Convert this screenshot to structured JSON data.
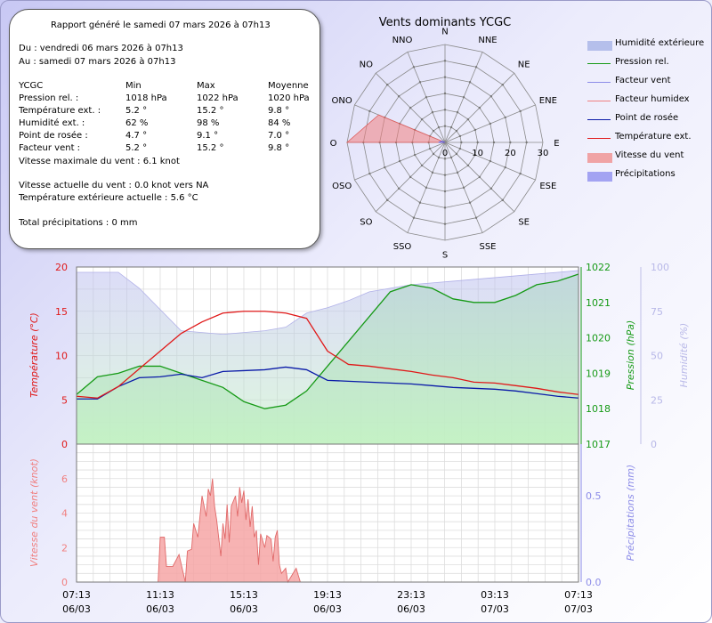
{
  "report": {
    "title": "Rapport généré le samedi 07 mars 2026 à 07h13",
    "from": "Du : vendredi 06 mars 2026 à 07h13",
    "to": "Au : samedi 07 mars 2026 à 07h13",
    "header": [
      "YCGC",
      "Min",
      "Max",
      "Moyenne"
    ],
    "rows": [
      [
        "Pression rel. :",
        "1018 hPa",
        "1022 hPa",
        "1020 hPa"
      ],
      [
        "Température ext. :",
        "5.2 °",
        "15.2 °",
        "9.8 °"
      ],
      [
        "Humidité ext. :",
        "62 %",
        "98 %",
        "84 %"
      ],
      [
        "Point de rosée :",
        "4.7 °",
        "9.1 °",
        "7.0 °"
      ],
      [
        "Facteur vent :",
        "5.2 °",
        "15.2 °",
        "9.8 °"
      ]
    ],
    "max_wind": "Vitesse maximale du vent : 6.1 knot",
    "current_wind": "Vitesse actuelle du vent : 0.0 knot vers  NA",
    "current_temp": "Température extérieure actuelle :  5.6 °C",
    "precip_total": "Total précipitations :  0 mm"
  },
  "legend": [
    {
      "label": "Humidité extérieure",
      "color": "#a8b4e8",
      "kind": "area"
    },
    {
      "label": "Pression rel.",
      "color": "#169a16",
      "kind": "line"
    },
    {
      "label": "Facteur vent",
      "color": "#8c8ce8",
      "kind": "line"
    },
    {
      "label": "Facteur humidex",
      "color": "#f08080",
      "kind": "line"
    },
    {
      "label": "Point de rosée",
      "color": "#0a1aa8",
      "kind": "line"
    },
    {
      "label": "Température ext.",
      "color": "#e01818",
      "kind": "line"
    },
    {
      "label": "Vitesse du vent",
      "color": "#f09090",
      "kind": "area"
    },
    {
      "label": "Précipitations",
      "color": "#9090f0",
      "kind": "area"
    }
  ],
  "chart_data": [
    {
      "type": "radar",
      "title": "Vents dominants YCGC",
      "directions": [
        "N",
        "NNE",
        "NE",
        "ENE",
        "E",
        "ESE",
        "SE",
        "SSE",
        "S",
        "SSO",
        "SO",
        "OSO",
        "O",
        "ONO",
        "NO",
        "NNO"
      ],
      "radial_ticks": [
        0,
        10,
        20,
        30
      ],
      "rmax": 30,
      "series": [
        {
          "name": "Vitesse du vent",
          "color": "#f08080",
          "values": [
            0,
            0,
            0,
            0,
            0,
            0,
            0,
            0,
            0,
            0,
            0,
            0,
            30,
            22,
            0,
            0
          ]
        },
        {
          "name": "Précipitations",
          "color": "#a0a0ff",
          "values": [
            0,
            0,
            0,
            0,
            0,
            0,
            0,
            0,
            0,
            0,
            0,
            0,
            2,
            1,
            0,
            0
          ]
        }
      ]
    },
    {
      "type": "line",
      "x": [
        0,
        1,
        2,
        3,
        4,
        5,
        6,
        7,
        8,
        9,
        10,
        11,
        12,
        13,
        14,
        15,
        16,
        17,
        18,
        19,
        20,
        21,
        22,
        23,
        24
      ],
      "x_tick_labels": [
        [
          "07:13",
          "06/03"
        ],
        [
          "11:13",
          "06/03"
        ],
        [
          "15:13",
          "06/03"
        ],
        [
          "19:13",
          "06/03"
        ],
        [
          "23:13",
          "06/03"
        ],
        [
          "03:13",
          "07/03"
        ],
        [
          "07:13",
          "07/03"
        ]
      ],
      "x_tick_hours": [
        0,
        4,
        8,
        12,
        16,
        20,
        24
      ],
      "y_left": {
        "label": "Température (°C)",
        "range": [
          0,
          20
        ],
        "ticks": [
          0,
          5,
          10,
          15,
          20
        ],
        "color": "#e01818"
      },
      "y_right1": {
        "label": "Pression (hPa)",
        "range": [
          1017,
          1022
        ],
        "ticks": [
          1017,
          1018,
          1019,
          1020,
          1021,
          1022
        ],
        "color": "#169a16"
      },
      "y_right2": {
        "label": "Humidité (%)",
        "range": [
          0,
          100
        ],
        "ticks": [
          0,
          25,
          50,
          75,
          100
        ],
        "color": "#b8b8e8"
      },
      "series": [
        {
          "name": "Humidité extérieure",
          "axis": "right2",
          "color": "#a8b4e8",
          "values": [
            97,
            97,
            97,
            88,
            76,
            64,
            63,
            62,
            63,
            64,
            66,
            74,
            77,
            81,
            86,
            88,
            90,
            91,
            92,
            93,
            94,
            95,
            96,
            97,
            98
          ]
        },
        {
          "name": "Pression rel.",
          "axis": "right1",
          "color": "#169a16",
          "values": [
            1018.4,
            1018.9,
            1019.0,
            1019.2,
            1019.2,
            1019.0,
            1018.8,
            1018.6,
            1018.2,
            1018.0,
            1018.1,
            1018.5,
            1019.2,
            1019.9,
            1020.6,
            1021.3,
            1021.5,
            1021.4,
            1021.1,
            1021.0,
            1021.0,
            1021.2,
            1021.5,
            1021.6,
            1021.8
          ]
        },
        {
          "name": "Température ext.",
          "axis": "left",
          "color": "#e01818",
          "values": [
            5.4,
            5.2,
            6.5,
            8.5,
            10.5,
            12.5,
            13.8,
            14.8,
            15.0,
            15.0,
            14.8,
            14.2,
            10.5,
            9.0,
            8.8,
            8.5,
            8.2,
            7.8,
            7.5,
            7.0,
            6.9,
            6.6,
            6.3,
            5.9,
            5.6
          ]
        },
        {
          "name": "Point de rosée",
          "axis": "left",
          "color": "#0a1aa8",
          "values": [
            5.1,
            5.1,
            6.5,
            7.5,
            7.6,
            7.9,
            7.5,
            8.2,
            8.3,
            8.4,
            8.7,
            8.4,
            7.2,
            7.1,
            7.0,
            6.9,
            6.8,
            6.6,
            6.4,
            6.3,
            6.2,
            6.0,
            5.7,
            5.4,
            5.2
          ]
        }
      ]
    },
    {
      "type": "area",
      "x": [
        0,
        1,
        2,
        3,
        4,
        5,
        6,
        7,
        8,
        9,
        10,
        11,
        12,
        13,
        14,
        15,
        16,
        17,
        18,
        19,
        20,
        21,
        22,
        23,
        24
      ],
      "x_tick_labels": [
        [
          "07:13",
          "06/03"
        ],
        [
          "11:13",
          "06/03"
        ],
        [
          "15:13",
          "06/03"
        ],
        [
          "19:13",
          "06/03"
        ],
        [
          "23:13",
          "06/03"
        ],
        [
          "03:13",
          "07/03"
        ],
        [
          "07:13",
          "07/03"
        ]
      ],
      "x_tick_hours": [
        0,
        4,
        8,
        12,
        16,
        20,
        24
      ],
      "y_left": {
        "label": "Vitesse du vent (knot)",
        "range": [
          0,
          8
        ],
        "ticks": [
          0,
          2,
          4,
          6
        ],
        "color": "#f08080"
      },
      "y_right": {
        "label": "Précipitations (mm)",
        "range": [
          0,
          0.8
        ],
        "ticks": [
          0.0,
          0.5
        ],
        "color": "#8c8ce8"
      },
      "series": [
        {
          "name": "Vitesse du vent",
          "axis": "left",
          "color": "#f08080",
          "points": [
            [
              3.9,
              0
            ],
            [
              4.0,
              2.6
            ],
            [
              4.2,
              2.6
            ],
            [
              4.3,
              0.9
            ],
            [
              4.6,
              0.9
            ],
            [
              4.9,
              1.6
            ],
            [
              5.2,
              0
            ],
            [
              5.3,
              1.8
            ],
            [
              5.5,
              1.9
            ],
            [
              5.6,
              3.4
            ],
            [
              5.8,
              2.6
            ],
            [
              5.9,
              3.8
            ],
            [
              6.0,
              5.0
            ],
            [
              6.2,
              3.8
            ],
            [
              6.3,
              5.4
            ],
            [
              6.4,
              5.0
            ],
            [
              6.5,
              6.0
            ],
            [
              6.6,
              4.4
            ],
            [
              6.7,
              3.6
            ],
            [
              6.9,
              1.5
            ],
            [
              7.0,
              3.4
            ],
            [
              7.1,
              2.5
            ],
            [
              7.2,
              4.5
            ],
            [
              7.3,
              2.3
            ],
            [
              7.4,
              4.4
            ],
            [
              7.6,
              5.0
            ],
            [
              7.7,
              3.8
            ],
            [
              7.8,
              5.5
            ],
            [
              7.9,
              4.6
            ],
            [
              8.0,
              5.3
            ],
            [
              8.1,
              3.6
            ],
            [
              8.2,
              4.8
            ],
            [
              8.3,
              3.2
            ],
            [
              8.4,
              4.4
            ],
            [
              8.5,
              2.6
            ],
            [
              8.6,
              3.0
            ],
            [
              8.7,
              1.0
            ],
            [
              8.8,
              2.8
            ],
            [
              9.0,
              2.0
            ],
            [
              9.1,
              2.7
            ],
            [
              9.3,
              2.5
            ],
            [
              9.4,
              1.2
            ],
            [
              9.5,
              2.6
            ],
            [
              9.6,
              3.0
            ],
            [
              9.7,
              1.0
            ],
            [
              9.8,
              0.5
            ],
            [
              10.0,
              0.8
            ],
            [
              10.1,
              0
            ],
            [
              10.5,
              0.8
            ],
            [
              10.7,
              0
            ]
          ]
        }
      ]
    }
  ]
}
